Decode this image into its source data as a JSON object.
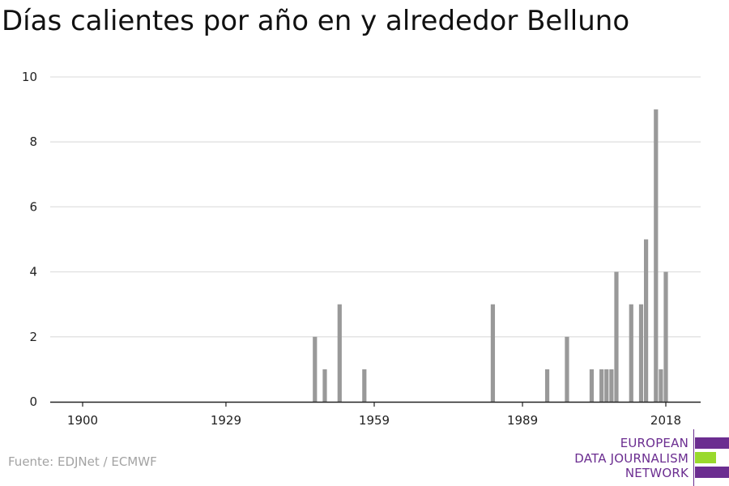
{
  "title": "Días calientes por año en y alrededor Belluno",
  "source": "Fuente: EDJNet / ECMWF",
  "logo": {
    "lines": [
      "EUROPEAN",
      "DATA JOURNALISM",
      "NETWORK"
    ],
    "colors": {
      "primary": "#6b2d90",
      "accent": "#99d92c"
    }
  },
  "colors": {
    "bar": "#999999",
    "grid": "#e0e0e0",
    "axis": "#222222"
  },
  "chart_data": {
    "type": "bar",
    "title": "Días calientes por año en y alrededor Belluno",
    "xlabel": "",
    "ylabel": "",
    "xlim": [
      1900,
      2018
    ],
    "ylim": [
      0,
      10
    ],
    "x_ticks": [
      1900,
      1929,
      1959,
      1989,
      2018
    ],
    "y_ticks": [
      0,
      2,
      4,
      6,
      8,
      10
    ],
    "grid": true,
    "x": [
      1947,
      1949,
      1952,
      1957,
      1983,
      1994,
      1998,
      2003,
      2005,
      2006,
      2007,
      2008,
      2011,
      2013,
      2014,
      2016,
      2017,
      2018
    ],
    "values": [
      2,
      1,
      3,
      1,
      3,
      1,
      2,
      1,
      1,
      1,
      1,
      4,
      3,
      3,
      5,
      9,
      1,
      4
    ]
  }
}
